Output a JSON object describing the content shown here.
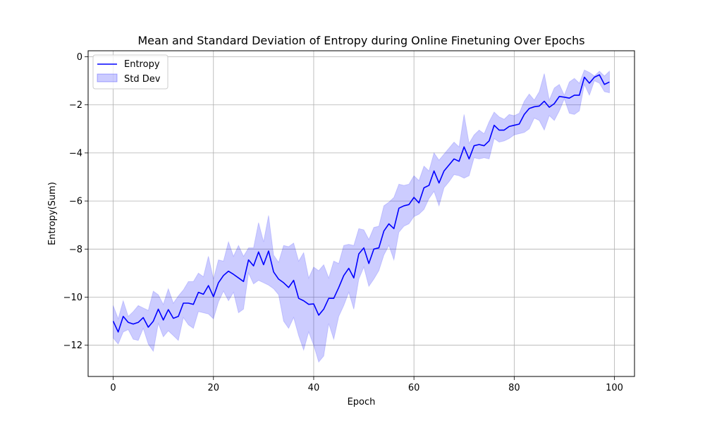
{
  "chart_data": {
    "type": "line",
    "title": "Mean and Standard Deviation of Entropy during Online Finetuning Over Epochs",
    "xlabel": "Epoch",
    "ylabel": "Entropy(Sum)",
    "xlim": [
      -5,
      104
    ],
    "ylim": [
      -13.3,
      0.25
    ],
    "xticks": [
      0,
      20,
      40,
      60,
      80,
      100
    ],
    "yticks": [
      0,
      -2,
      -4,
      -6,
      -8,
      -10,
      -12
    ],
    "xtick_labels": [
      "0",
      "20",
      "40",
      "60",
      "80",
      "100"
    ],
    "ytick_labels": [
      "0",
      "−2",
      "−4",
      "−6",
      "−8",
      "−10",
      "−12"
    ],
    "grid": true,
    "legend_position": "top-left",
    "colors": {
      "line": "#0000ff",
      "band": "#0000ff"
    },
    "series": [
      {
        "name": "Entropy",
        "kind": "line",
        "x": [
          0,
          1,
          2,
          3,
          4,
          5,
          6,
          7,
          8,
          9,
          10,
          11,
          12,
          13,
          14,
          15,
          16,
          17,
          18,
          19,
          20,
          21,
          22,
          23,
          24,
          25,
          26,
          27,
          28,
          29,
          30,
          31,
          32,
          33,
          34,
          35,
          36,
          37,
          38,
          39,
          40,
          41,
          42,
          43,
          44,
          45,
          46,
          47,
          48,
          49,
          50,
          51,
          52,
          53,
          54,
          55,
          56,
          57,
          58,
          59,
          60,
          61,
          62,
          63,
          64,
          65,
          66,
          67,
          68,
          69,
          70,
          71,
          72,
          73,
          74,
          75,
          76,
          77,
          78,
          79,
          80,
          81,
          82,
          83,
          84,
          85,
          86,
          87,
          88,
          89,
          90,
          91,
          92,
          93,
          94,
          95,
          96,
          97,
          98,
          99
        ],
        "y": [
          -11.0,
          -11.45,
          -10.8,
          -11.05,
          -11.12,
          -11.05,
          -10.85,
          -11.25,
          -11.0,
          -10.5,
          -10.95,
          -10.52,
          -10.88,
          -10.8,
          -10.25,
          -10.25,
          -10.3,
          -9.8,
          -9.88,
          -9.52,
          -9.98,
          -9.4,
          -9.1,
          -8.92,
          -9.05,
          -9.2,
          -9.35,
          -8.45,
          -8.7,
          -8.12,
          -8.65,
          -8.08,
          -8.95,
          -9.25,
          -9.4,
          -9.6,
          -9.3,
          -10.05,
          -10.15,
          -10.3,
          -10.28,
          -10.75,
          -10.5,
          -10.05,
          -10.05,
          -9.6,
          -9.1,
          -8.8,
          -9.2,
          -8.2,
          -7.95,
          -8.6,
          -8.0,
          -7.95,
          -7.25,
          -6.95,
          -7.15,
          -6.3,
          -6.2,
          -6.15,
          -5.85,
          -6.08,
          -5.45,
          -5.35,
          -4.75,
          -5.25,
          -4.75,
          -4.5,
          -4.25,
          -4.35,
          -3.75,
          -4.25,
          -3.7,
          -3.65,
          -3.7,
          -3.5,
          -2.85,
          -3.05,
          -3.05,
          -2.9,
          -2.85,
          -2.8,
          -2.4,
          -2.15,
          -2.08,
          -2.05,
          -1.85,
          -2.1,
          -1.95,
          -1.65,
          -1.68,
          -1.72,
          -1.6,
          -1.6,
          -0.85,
          -1.1,
          -0.85,
          -0.75,
          -1.15,
          -1.05
        ]
      },
      {
        "name": "Std Dev",
        "kind": "band",
        "x": [
          0,
          1,
          2,
          3,
          4,
          5,
          6,
          7,
          8,
          9,
          10,
          11,
          12,
          13,
          14,
          15,
          16,
          17,
          18,
          19,
          20,
          21,
          22,
          23,
          24,
          25,
          26,
          27,
          28,
          29,
          30,
          31,
          32,
          33,
          34,
          35,
          36,
          37,
          38,
          39,
          40,
          41,
          42,
          43,
          44,
          45,
          46,
          47,
          48,
          49,
          50,
          51,
          52,
          53,
          54,
          55,
          56,
          57,
          58,
          59,
          60,
          61,
          62,
          63,
          64,
          65,
          66,
          67,
          68,
          69,
          70,
          71,
          72,
          73,
          74,
          75,
          76,
          77,
          78,
          79,
          80,
          81,
          82,
          83,
          84,
          85,
          86,
          87,
          88,
          89,
          90,
          91,
          92,
          93,
          94,
          95,
          96,
          97,
          98,
          99
        ],
        "upper": [
          -10.35,
          -10.9,
          -10.15,
          -10.8,
          -10.6,
          -10.35,
          -10.45,
          -10.55,
          -9.75,
          -9.9,
          -10.3,
          -9.65,
          -10.25,
          -9.95,
          -9.7,
          -9.35,
          -9.35,
          -9.0,
          -9.15,
          -8.3,
          -9.25,
          -8.45,
          -8.5,
          -7.7,
          -8.3,
          -7.85,
          -8.3,
          -7.95,
          -7.95,
          -6.9,
          -7.7,
          -6.6,
          -8.25,
          -8.55,
          -7.85,
          -7.9,
          -7.75,
          -8.5,
          -8.15,
          -9.2,
          -8.75,
          -8.9,
          -8.65,
          -9.2,
          -8.5,
          -8.6,
          -7.85,
          -7.8,
          -7.85,
          -7.15,
          -7.2,
          -7.6,
          -7.1,
          -7.05,
          -6.2,
          -6.05,
          -5.85,
          -5.3,
          -5.35,
          -5.3,
          -4.95,
          -5.15,
          -4.55,
          -4.75,
          -4.0,
          -4.3,
          -4.05,
          -3.8,
          -3.55,
          -3.75,
          -2.4,
          -3.6,
          -3.25,
          -3.05,
          -3.2,
          -2.7,
          -2.3,
          -2.5,
          -2.6,
          -2.4,
          -2.45,
          -2.35,
          -1.85,
          -1.55,
          -1.8,
          -1.45,
          -0.7,
          -1.8,
          -1.3,
          -1.15,
          -1.6,
          -1.05,
          -0.9,
          -1.1,
          -0.55,
          -0.65,
          -0.8,
          -0.6,
          -0.8,
          -0.6
        ],
        "lower": [
          -11.7,
          -11.95,
          -11.45,
          -11.35,
          -11.75,
          -11.8,
          -11.3,
          -11.95,
          -12.25,
          -11.1,
          -11.65,
          -11.4,
          -11.6,
          -11.8,
          -10.85,
          -11.15,
          -11.3,
          -10.6,
          -10.65,
          -10.7,
          -10.9,
          -10.2,
          -9.75,
          -10.15,
          -9.8,
          -10.65,
          -10.5,
          -9.0,
          -9.45,
          -9.3,
          -9.4,
          -9.5,
          -9.65,
          -9.9,
          -11.0,
          -11.3,
          -10.85,
          -11.6,
          -12.2,
          -11.45,
          -12.0,
          -12.7,
          -12.45,
          -11.1,
          -11.75,
          -10.8,
          -10.35,
          -9.8,
          -10.5,
          -9.25,
          -8.75,
          -9.55,
          -9.25,
          -8.9,
          -8.25,
          -7.85,
          -8.45,
          -7.3,
          -7.05,
          -6.95,
          -6.65,
          -6.55,
          -6.35,
          -5.9,
          -5.6,
          -6.2,
          -5.45,
          -5.2,
          -4.9,
          -4.95,
          -5.05,
          -4.95,
          -4.2,
          -4.25,
          -4.2,
          -4.25,
          -3.4,
          -3.55,
          -3.5,
          -3.4,
          -3.25,
          -3.2,
          -3.15,
          -3.0,
          -2.55,
          -2.65,
          -3.05,
          -2.45,
          -2.65,
          -2.25,
          -1.75,
          -2.35,
          -2.4,
          -2.25,
          -1.15,
          -1.6,
          -1.0,
          -1.1,
          -1.45,
          -1.5
        ]
      }
    ]
  }
}
